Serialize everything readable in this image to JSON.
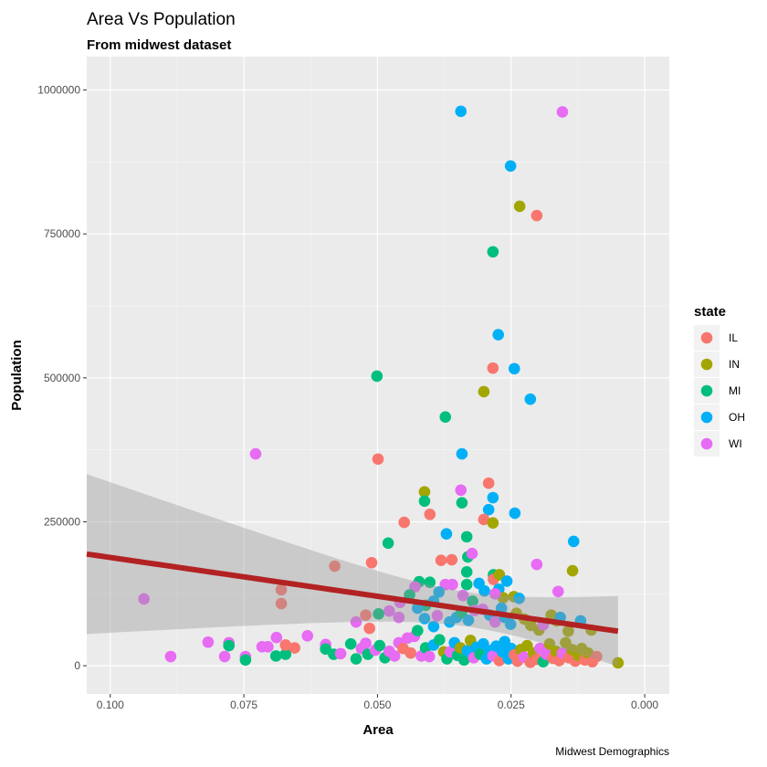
{
  "chart_data": {
    "type": "scatter",
    "title": "Area Vs Population",
    "subtitle": "From midwest dataset",
    "xlabel": "Area",
    "ylabel": "Population",
    "caption": "Midwest Demographics",
    "x_reversed": true,
    "xlim": [
      -0.0046,
      0.1044
    ],
    "ylim": [
      -49000,
      1058000
    ],
    "x_ticks": [
      0.1,
      0.075,
      0.05,
      0.025,
      0.0
    ],
    "x_tick_labels": [
      "0.100",
      "0.075",
      "0.050",
      "0.025",
      "0.000"
    ],
    "y_ticks": [
      0,
      250000,
      500000,
      750000,
      1000000
    ],
    "y_tick_labels": [
      "0",
      "250000",
      "500000",
      "750000",
      "1000000"
    ],
    "grid": true,
    "legend": {
      "title": "state",
      "position": "right",
      "entries": [
        "IL",
        "IN",
        "MI",
        "OH",
        "WI"
      ]
    },
    "colors": [
      "#F8766D",
      "#A3A500",
      "#00BF7D",
      "#00B0F6",
      "#E76BF3"
    ],
    "smooth": {
      "method": "lm",
      "color": "#B22222",
      "x_range": [
        0.005,
        0.1044
      ],
      "fit_at_x005": 60000,
      "slope": 1348000,
      "x_mean": 0.033,
      "se_min": 30000,
      "se_curv": 3610000000000.0
    },
    "points": [
      [
        0.0344,
        963000,
        3
      ],
      [
        0.0154,
        962000,
        4
      ],
      [
        0.0251,
        868000,
        3
      ],
      [
        0.0234,
        798000,
        1
      ],
      [
        0.0202,
        782000,
        0
      ],
      [
        0.0284,
        719000,
        2
      ],
      [
        0.0274,
        575000,
        3
      ],
      [
        0.0284,
        517000,
        0
      ],
      [
        0.0244,
        516000,
        3
      ],
      [
        0.0501,
        503000,
        2
      ],
      [
        0.0301,
        476000,
        1
      ],
      [
        0.0214,
        463000,
        3
      ],
      [
        0.0373,
        432000,
        2
      ],
      [
        0.0728,
        368000,
        4
      ],
      [
        0.0342,
        368000,
        3
      ],
      [
        0.0499,
        359000,
        0
      ],
      [
        0.0412,
        302000,
        1
      ],
      [
        0.0292,
        317000,
        0
      ],
      [
        0.0344,
        305000,
        4
      ],
      [
        0.0412,
        286000,
        2
      ],
      [
        0.0342,
        283000,
        2
      ],
      [
        0.0284,
        292000,
        3
      ],
      [
        0.0292,
        271000,
        3
      ],
      [
        0.0243,
        265000,
        3
      ],
      [
        0.0301,
        254000,
        0
      ],
      [
        0.0284,
        248000,
        1
      ],
      [
        0.045,
        249000,
        0
      ],
      [
        0.0402,
        263000,
        0
      ],
      [
        0.0371,
        229000,
        3
      ],
      [
        0.0333,
        224000,
        2
      ],
      [
        0.048,
        213000,
        2
      ],
      [
        0.0133,
        216000,
        3
      ],
      [
        0.058,
        173000,
        0
      ],
      [
        0.0511,
        179000,
        0
      ],
      [
        0.0381,
        183000,
        0
      ],
      [
        0.0361,
        184000,
        0
      ],
      [
        0.0331,
        189000,
        2
      ],
      [
        0.0323,
        195000,
        4
      ],
      [
        0.0202,
        176000,
        4
      ],
      [
        0.0135,
        165000,
        1
      ],
      [
        0.0937,
        116000,
        4
      ],
      [
        0.068,
        132000,
        0
      ],
      [
        0.068,
        108000,
        0
      ],
      [
        0.0162,
        129000,
        4
      ],
      [
        0.0333,
        163000,
        2
      ],
      [
        0.0333,
        141000,
        2
      ],
      [
        0.0283,
        158000,
        2
      ],
      [
        0.0283,
        150000,
        0
      ],
      [
        0.0272,
        158000,
        1
      ],
      [
        0.0258,
        147000,
        3
      ],
      [
        0.0273,
        133000,
        3
      ],
      [
        0.0265,
        118000,
        1
      ],
      [
        0.0245,
        120000,
        1
      ],
      [
        0.0235,
        117000,
        3
      ],
      [
        0.031,
        143000,
        3
      ],
      [
        0.03,
        130000,
        3
      ],
      [
        0.028,
        125000,
        4
      ],
      [
        0.0322,
        112000,
        2
      ],
      [
        0.034,
        122000,
        4
      ],
      [
        0.036,
        141000,
        4
      ],
      [
        0.0373,
        141000,
        4
      ],
      [
        0.0385,
        128000,
        3
      ],
      [
        0.0402,
        145000,
        2
      ],
      [
        0.0422,
        146000,
        2
      ],
      [
        0.043,
        137000,
        4
      ],
      [
        0.0395,
        112000,
        3
      ],
      [
        0.041,
        105000,
        2
      ],
      [
        0.0425,
        100000,
        3
      ],
      [
        0.044,
        123000,
        2
      ],
      [
        0.0458,
        110000,
        4
      ],
      [
        0.0478,
        95000,
        4
      ],
      [
        0.0498,
        90000,
        2
      ],
      [
        0.0522,
        88000,
        0
      ],
      [
        0.054,
        76000,
        4
      ],
      [
        0.0515,
        65000,
        0
      ],
      [
        0.046,
        84000,
        4
      ],
      [
        0.0412,
        82000,
        3
      ],
      [
        0.0395,
        68000,
        3
      ],
      [
        0.0388,
        87000,
        4
      ],
      [
        0.0365,
        76000,
        3
      ],
      [
        0.0352,
        84000,
        3
      ],
      [
        0.0343,
        92000,
        2
      ],
      [
        0.033,
        79000,
        3
      ],
      [
        0.0318,
        96000,
        4
      ],
      [
        0.0303,
        98000,
        4
      ],
      [
        0.029,
        88000,
        3
      ],
      [
        0.028,
        76000,
        4
      ],
      [
        0.0268,
        100000,
        3
      ],
      [
        0.0262,
        84000,
        3
      ],
      [
        0.0251,
        72000,
        3
      ],
      [
        0.024,
        91000,
        1
      ],
      [
        0.0225,
        81000,
        1
      ],
      [
        0.0213,
        70000,
        1
      ],
      [
        0.0198,
        62000,
        1
      ],
      [
        0.019,
        71000,
        4
      ],
      [
        0.0175,
        88000,
        1
      ],
      [
        0.0165,
        78000,
        1
      ],
      [
        0.0158,
        84000,
        3
      ],
      [
        0.0143,
        60000,
        1
      ],
      [
        0.012,
        78000,
        3
      ],
      [
        0.01,
        62000,
        1
      ],
      [
        0.005,
        5000,
        1
      ],
      [
        0.0887,
        16000,
        4
      ],
      [
        0.0817,
        41000,
        4
      ],
      [
        0.0786,
        16000,
        4
      ],
      [
        0.0778,
        40000,
        4
      ],
      [
        0.0778,
        35000,
        2
      ],
      [
        0.0747,
        16000,
        4
      ],
      [
        0.0747,
        10000,
        2
      ],
      [
        0.0716,
        33000,
        4
      ],
      [
        0.0705,
        33000,
        4
      ],
      [
        0.0689,
        49000,
        4
      ],
      [
        0.069,
        17000,
        2
      ],
      [
        0.0672,
        20000,
        2
      ],
      [
        0.0672,
        36000,
        0
      ],
      [
        0.0655,
        31000,
        0
      ],
      [
        0.0631,
        52000,
        4
      ],
      [
        0.0597,
        37000,
        4
      ],
      [
        0.0597,
        29000,
        2
      ],
      [
        0.0582,
        20000,
        2
      ],
      [
        0.0569,
        21000,
        4
      ],
      [
        0.055,
        38000,
        2
      ],
      [
        0.054,
        12000,
        2
      ],
      [
        0.053,
        30000,
        4
      ],
      [
        0.0522,
        39000,
        4
      ],
      [
        0.0518,
        20000,
        2
      ],
      [
        0.0504,
        27000,
        4
      ],
      [
        0.0496,
        35000,
        2
      ],
      [
        0.0486,
        14000,
        2
      ],
      [
        0.0478,
        25000,
        4
      ],
      [
        0.0468,
        17000,
        4
      ],
      [
        0.046,
        40000,
        4
      ],
      [
        0.0452,
        30000,
        0
      ],
      [
        0.0444,
        48000,
        4
      ],
      [
        0.0438,
        22000,
        0
      ],
      [
        0.0431,
        51000,
        4
      ],
      [
        0.0425,
        61000,
        2
      ],
      [
        0.0418,
        17000,
        4
      ],
      [
        0.041,
        31000,
        2
      ],
      [
        0.0403,
        16000,
        4
      ],
      [
        0.0395,
        36000,
        3
      ],
      [
        0.0384,
        45000,
        2
      ],
      [
        0.0376,
        24000,
        1
      ],
      [
        0.037,
        12000,
        2
      ],
      [
        0.0364,
        24000,
        4
      ],
      [
        0.0356,
        40000,
        3
      ],
      [
        0.035,
        18000,
        2
      ],
      [
        0.0345,
        31000,
        1
      ],
      [
        0.0338,
        10000,
        2
      ],
      [
        0.0332,
        26000,
        3
      ],
      [
        0.0326,
        44000,
        1
      ],
      [
        0.032,
        14000,
        4
      ],
      [
        0.0315,
        32000,
        3
      ],
      [
        0.0308,
        20000,
        2
      ],
      [
        0.0302,
        38000,
        3
      ],
      [
        0.0296,
        12000,
        3
      ],
      [
        0.029,
        26000,
        3
      ],
      [
        0.0284,
        17000,
        4
      ],
      [
        0.0278,
        34000,
        3
      ],
      [
        0.0272,
        9000,
        0
      ],
      [
        0.0266,
        24000,
        3
      ],
      [
        0.0262,
        42000,
        3
      ],
      [
        0.0255,
        12000,
        3
      ],
      [
        0.025,
        30000,
        3
      ],
      [
        0.0244,
        19000,
        0
      ],
      [
        0.0238,
        8000,
        0
      ],
      [
        0.0232,
        28000,
        1
      ],
      [
        0.0226,
        15000,
        4
      ],
      [
        0.022,
        35000,
        1
      ],
      [
        0.0214,
        6000,
        0
      ],
      [
        0.0208,
        22000,
        1
      ],
      [
        0.0202,
        11000,
        0
      ],
      [
        0.0196,
        30000,
        4
      ],
      [
        0.019,
        7000,
        2
      ],
      [
        0.0184,
        20000,
        4
      ],
      [
        0.0178,
        38000,
        1
      ],
      [
        0.0172,
        13000,
        0
      ],
      [
        0.0166,
        25000,
        1
      ],
      [
        0.016,
        9000,
        0
      ],
      [
        0.0154,
        22000,
        4
      ],
      [
        0.0148,
        40000,
        1
      ],
      [
        0.0142,
        14000,
        0
      ],
      [
        0.0136,
        28000,
        1
      ],
      [
        0.013,
        8000,
        0
      ],
      [
        0.0124,
        18000,
        1
      ],
      [
        0.0118,
        30000,
        1
      ],
      [
        0.0112,
        10000,
        0
      ],
      [
        0.0106,
        22000,
        1
      ],
      [
        0.0098,
        7000,
        0
      ],
      [
        0.009,
        16000,
        0
      ]
    ]
  }
}
